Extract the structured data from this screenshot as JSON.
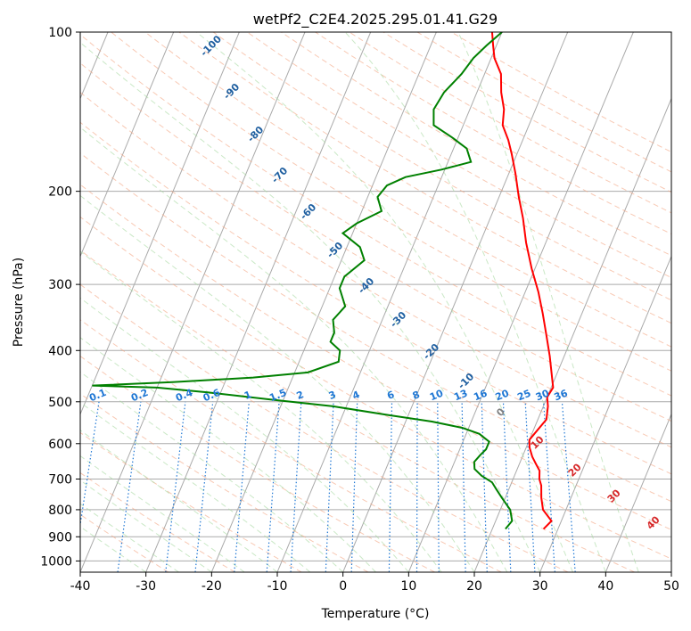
{
  "chart_data": {
    "type": "line",
    "title": "wetPf2_C2E4.2025.295.01.41.G29",
    "xlabel": "Temperature (°C)",
    "ylabel": "Pressure (hPa)",
    "xlim": [
      -40,
      50
    ],
    "ylim": [
      1050,
      100
    ],
    "x_ticks": [
      "-40",
      "-30",
      "-20",
      "-10",
      "0",
      "10",
      "20",
      "30",
      "40",
      "50"
    ],
    "y_ticks": [
      "100",
      "200",
      "300",
      "400",
      "500",
      "600",
      "700",
      "800",
      "900",
      "1000"
    ],
    "grid": true,
    "skew_degrees_per_decade": 33.5,
    "series": [
      {
        "name": "temperature",
        "color": "#ff0000",
        "points": [
          [
            27.8,
            870
          ],
          [
            28.5,
            840
          ],
          [
            26.5,
            800
          ],
          [
            25.5,
            760
          ],
          [
            24.7,
            720
          ],
          [
            24.0,
            700
          ],
          [
            23.5,
            675
          ],
          [
            22.5,
            655
          ],
          [
            21.5,
            635
          ],
          [
            20.5,
            610
          ],
          [
            20.0,
            590
          ],
          [
            20.5,
            570
          ],
          [
            21.3,
            540
          ],
          [
            20.7,
            510
          ],
          [
            20.0,
            490
          ],
          [
            20.3,
            470
          ],
          [
            19.3,
            445
          ],
          [
            17.8,
            410
          ],
          [
            16.0,
            375
          ],
          [
            14.0,
            340
          ],
          [
            12.0,
            310
          ],
          [
            9.5,
            280
          ],
          [
            7.0,
            250
          ],
          [
            5.0,
            225
          ],
          [
            3.0,
            205
          ],
          [
            1.0,
            185
          ],
          [
            -0.8,
            170
          ],
          [
            -2.2,
            160
          ],
          [
            -4.0,
            150
          ],
          [
            -4.8,
            140
          ],
          [
            -6.3,
            130
          ],
          [
            -7.5,
            120
          ],
          [
            -9.5,
            112
          ],
          [
            -10.5,
            106
          ],
          [
            -11.5,
            100
          ]
        ]
      },
      {
        "name": "dewpoint",
        "color": "#008000",
        "points": [
          [
            22.0,
            870
          ],
          [
            22.5,
            840
          ],
          [
            21.5,
            800
          ],
          [
            19.5,
            760
          ],
          [
            18.0,
            730
          ],
          [
            17.0,
            710
          ],
          [
            15.0,
            690
          ],
          [
            13.5,
            670
          ],
          [
            13.0,
            650
          ],
          [
            13.5,
            630
          ],
          [
            14.0,
            615
          ],
          [
            14.0,
            595
          ],
          [
            12.0,
            575
          ],
          [
            9.0,
            560
          ],
          [
            4.0,
            545
          ],
          [
            -3.0,
            530
          ],
          [
            -12.0,
            510
          ],
          [
            -22.0,
            495
          ],
          [
            -32.0,
            480
          ],
          [
            -40.0,
            470
          ],
          [
            -50.0,
            466
          ],
          [
            -38.0,
            459
          ],
          [
            -26.0,
            450
          ],
          [
            -18.0,
            440
          ],
          [
            -14.0,
            420
          ],
          [
            -14.5,
            400
          ],
          [
            -16.5,
            385
          ],
          [
            -16.5,
            370
          ],
          [
            -17.5,
            350
          ],
          [
            -16.5,
            330
          ],
          [
            -18.5,
            305
          ],
          [
            -18.5,
            290
          ],
          [
            -16.5,
            270
          ],
          [
            -18.0,
            255
          ],
          [
            -21.5,
            240
          ],
          [
            -20.0,
            230
          ],
          [
            -17.0,
            218
          ],
          [
            -18.5,
            205
          ],
          [
            -17.8,
            195
          ],
          [
            -15.5,
            188
          ],
          [
            -10.5,
            182
          ],
          [
            -6.5,
            176
          ],
          [
            -8.0,
            166
          ],
          [
            -11.0,
            158
          ],
          [
            -14.5,
            150
          ],
          [
            -15.5,
            140
          ],
          [
            -15.0,
            130
          ],
          [
            -13.5,
            120
          ],
          [
            -12.7,
            112
          ],
          [
            -11.5,
            106
          ],
          [
            -10.0,
            100
          ]
        ]
      }
    ],
    "dry_adiabat_labels": [
      {
        "text": "-100"
      },
      {
        "text": "-90"
      },
      {
        "text": "-80"
      },
      {
        "text": "-70"
      },
      {
        "text": "-60"
      },
      {
        "text": "-50"
      },
      {
        "text": "-40"
      },
      {
        "text": "-30"
      },
      {
        "text": "-20"
      },
      {
        "text": "-10"
      },
      {
        "text": "0"
      },
      {
        "text": "10"
      },
      {
        "text": "20"
      },
      {
        "text": "30"
      },
      {
        "text": "40"
      }
    ],
    "mixing_ratio_labels": [
      "0.1",
      "0.2",
      "0.4",
      "0.6",
      "1",
      "1.5",
      "2",
      "3",
      "4",
      "6",
      "8",
      "10",
      "13",
      "16",
      "20",
      "25",
      "30",
      "36"
    ],
    "colors": {
      "temperature": "#ff0000",
      "dewpoint": "#008000",
      "isotherm": "#aaaaaa",
      "isobar": "#aaaaaa",
      "dry_adiabat": "#f4a582",
      "moist_adiabat": "#a6d8a0",
      "mixing_ratio": "#1f77d4",
      "dry_label": "#1f5fa0",
      "warm_label": "#d62728",
      "zero_label": "#808080"
    }
  }
}
